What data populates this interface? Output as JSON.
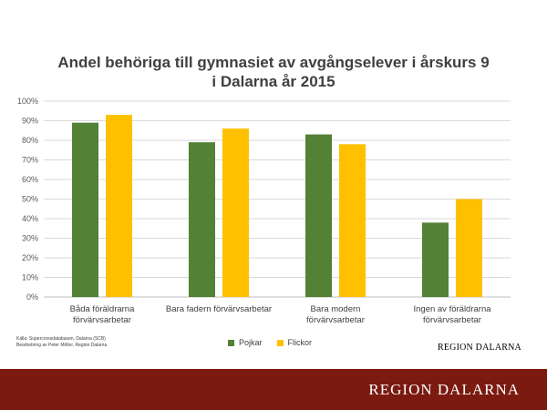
{
  "title_line1": "Andel behöriga till gymnasiet av avgångselever i årskurs 9",
  "title_line2": "i Dalarna år 2015",
  "source_line1": "Källa: Supercrossdatabasen, Dalarna (SCB)",
  "source_line2": "Bearbetning av Peter Möller, Region Dalarna",
  "brand_small": "REGION DALARNA",
  "brand_large": "REGION DALARNA",
  "colors": {
    "pojkar": "#538135",
    "flickor": "#FFC000",
    "footer": "#7a1a10",
    "grid": "#d9d9d9"
  },
  "chart_data": {
    "type": "bar",
    "categories": [
      [
        "Båda föräldrarna",
        "förvärvsarbetar"
      ],
      [
        "Bara fadern förvärvsarbetar"
      ],
      [
        "Bara modern",
        "förvärvsarbetar"
      ],
      [
        "Ingen av föräldrarna",
        "förvärvsarbetar"
      ]
    ],
    "series": [
      {
        "name": "Pojkar",
        "values": [
          89,
          79,
          83,
          38
        ]
      },
      {
        "name": "Flickor",
        "values": [
          93,
          86,
          78,
          50
        ]
      }
    ],
    "yticks": [
      "0%",
      "10%",
      "20%",
      "30%",
      "40%",
      "50%",
      "60%",
      "70%",
      "80%",
      "90%",
      "100%"
    ],
    "ylim": [
      0,
      100
    ],
    "grid": true,
    "legend": "bottom"
  }
}
